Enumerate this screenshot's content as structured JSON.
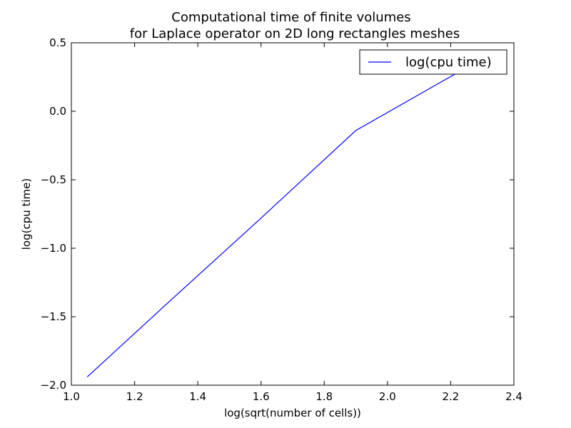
{
  "chart_data": {
    "type": "line",
    "title": [
      "Computational time of finite volumes",
      "for Laplace operator on 2D long rectangles meshes"
    ],
    "xlabel": "log(sqrt(number of cells))",
    "ylabel": "log(cpu time)",
    "xlim": [
      1.0,
      2.4
    ],
    "ylim": [
      -2.0,
      0.5
    ],
    "x_ticks": [
      1.0,
      1.2,
      1.4,
      1.6,
      1.8,
      2.0,
      2.2,
      2.4
    ],
    "x_tick_labels": [
      "1.0",
      "1.2",
      "1.4",
      "1.6",
      "1.8",
      "2.0",
      "2.2",
      "2.4"
    ],
    "y_ticks": [
      0.5,
      0.0,
      -0.5,
      -1.0,
      -1.5,
      -2.0
    ],
    "y_tick_labels": [
      "0.5",
      "0.0",
      "−0.5",
      "−1.0",
      "−1.5",
      "−2.0"
    ],
    "grid": false,
    "legend_position": "top-right",
    "series": [
      {
        "name": "log(cpu time)",
        "color": "#0000ff",
        "x": [
          1.05,
          1.3,
          1.6,
          1.9,
          2.22
        ],
        "y": [
          -1.94,
          -1.41,
          -0.78,
          -0.14,
          0.28
        ]
      }
    ]
  }
}
